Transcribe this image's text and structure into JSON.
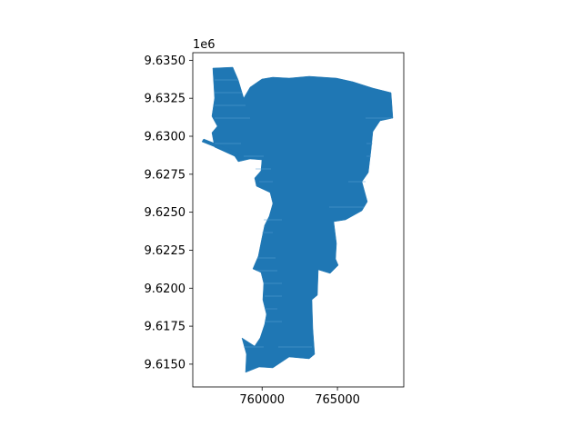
{
  "figure": {
    "background": "#ffffff",
    "y_offset_text": "1e6"
  },
  "chart_data": {
    "type": "map",
    "geometry": "polygon",
    "fill_color": "#1f77b4",
    "xlim": [
      755400,
      769400
    ],
    "ylim": [
      9613500,
      9635500
    ],
    "x_ticks": [
      760000,
      765000
    ],
    "x_tick_labels": [
      "760000",
      "765000"
    ],
    "y_ticks": [
      9615000,
      9617500,
      9620000,
      9622500,
      9625000,
      9627500,
      9630000,
      9632500,
      9635000
    ],
    "y_tick_labels": [
      "9.6150",
      "9.6175",
      "9.6200",
      "9.6225",
      "9.6250",
      "9.6275",
      "9.6300",
      "9.6325",
      "9.6350"
    ],
    "grid": false,
    "legend": "none",
    "title": "",
    "xlabel": "",
    "ylabel": ""
  }
}
